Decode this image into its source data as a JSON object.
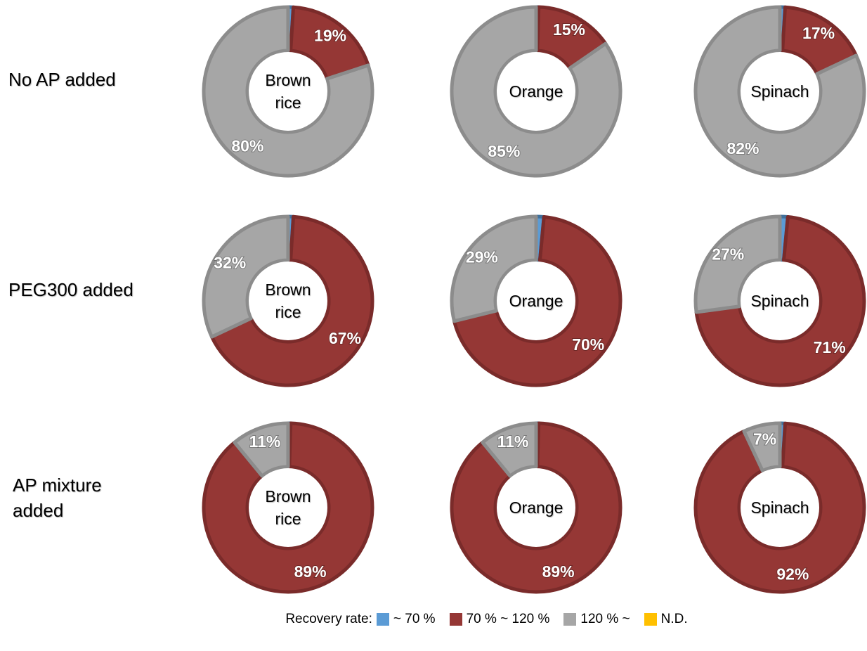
{
  "row_labels": [
    "No AP added",
    "PEG300 added",
    "AP mixture added"
  ],
  "legend": {
    "title": "Recovery rate:",
    "items": [
      {
        "name": "~ 70 %",
        "color": "#5b9bd5"
      },
      {
        "name": "70 % ~ 120 %",
        "color": "#953735"
      },
      {
        "name": "120 % ~",
        "color": "#a6a6a6"
      },
      {
        "name": "N.D.",
        "color": "#ffc000"
      }
    ]
  },
  "chart_data": [
    {
      "type": "donut",
      "title": "Brown rice",
      "values": [
        1,
        19,
        80
      ],
      "value_labels": [
        null,
        "19%",
        "80%"
      ]
    },
    {
      "type": "donut",
      "title": "Orange",
      "values": [
        0.5,
        15,
        85
      ],
      "value_labels": [
        null,
        "15%",
        "85%"
      ]
    },
    {
      "type": "donut",
      "title": "Spinach",
      "values": [
        1,
        17,
        82
      ],
      "value_labels": [
        null,
        "17%",
        "82%"
      ]
    },
    {
      "type": "donut",
      "title": "Brown rice",
      "values": [
        1,
        67,
        32
      ],
      "value_labels": [
        null,
        "67%",
        "32%"
      ]
    },
    {
      "type": "donut",
      "title": "Orange",
      "values": [
        1.5,
        70,
        29
      ],
      "value_labels": [
        null,
        "70%",
        "29%"
      ]
    },
    {
      "type": "donut",
      "title": "Spinach",
      "values": [
        1.5,
        71,
        27
      ],
      "value_labels": [
        null,
        "71%",
        "27%"
      ]
    },
    {
      "type": "donut",
      "title": "Brown rice",
      "values": [
        0.5,
        89,
        11
      ],
      "value_labels": [
        null,
        "89%",
        "11%"
      ]
    },
    {
      "type": "donut",
      "title": "Orange",
      "values": [
        0.5,
        89,
        11
      ],
      "value_labels": [
        null,
        "89%",
        "11%"
      ]
    },
    {
      "type": "donut",
      "title": "Spinach",
      "values": [
        1,
        92,
        7
      ],
      "value_labels": [
        null,
        "92%",
        "7%"
      ]
    }
  ]
}
